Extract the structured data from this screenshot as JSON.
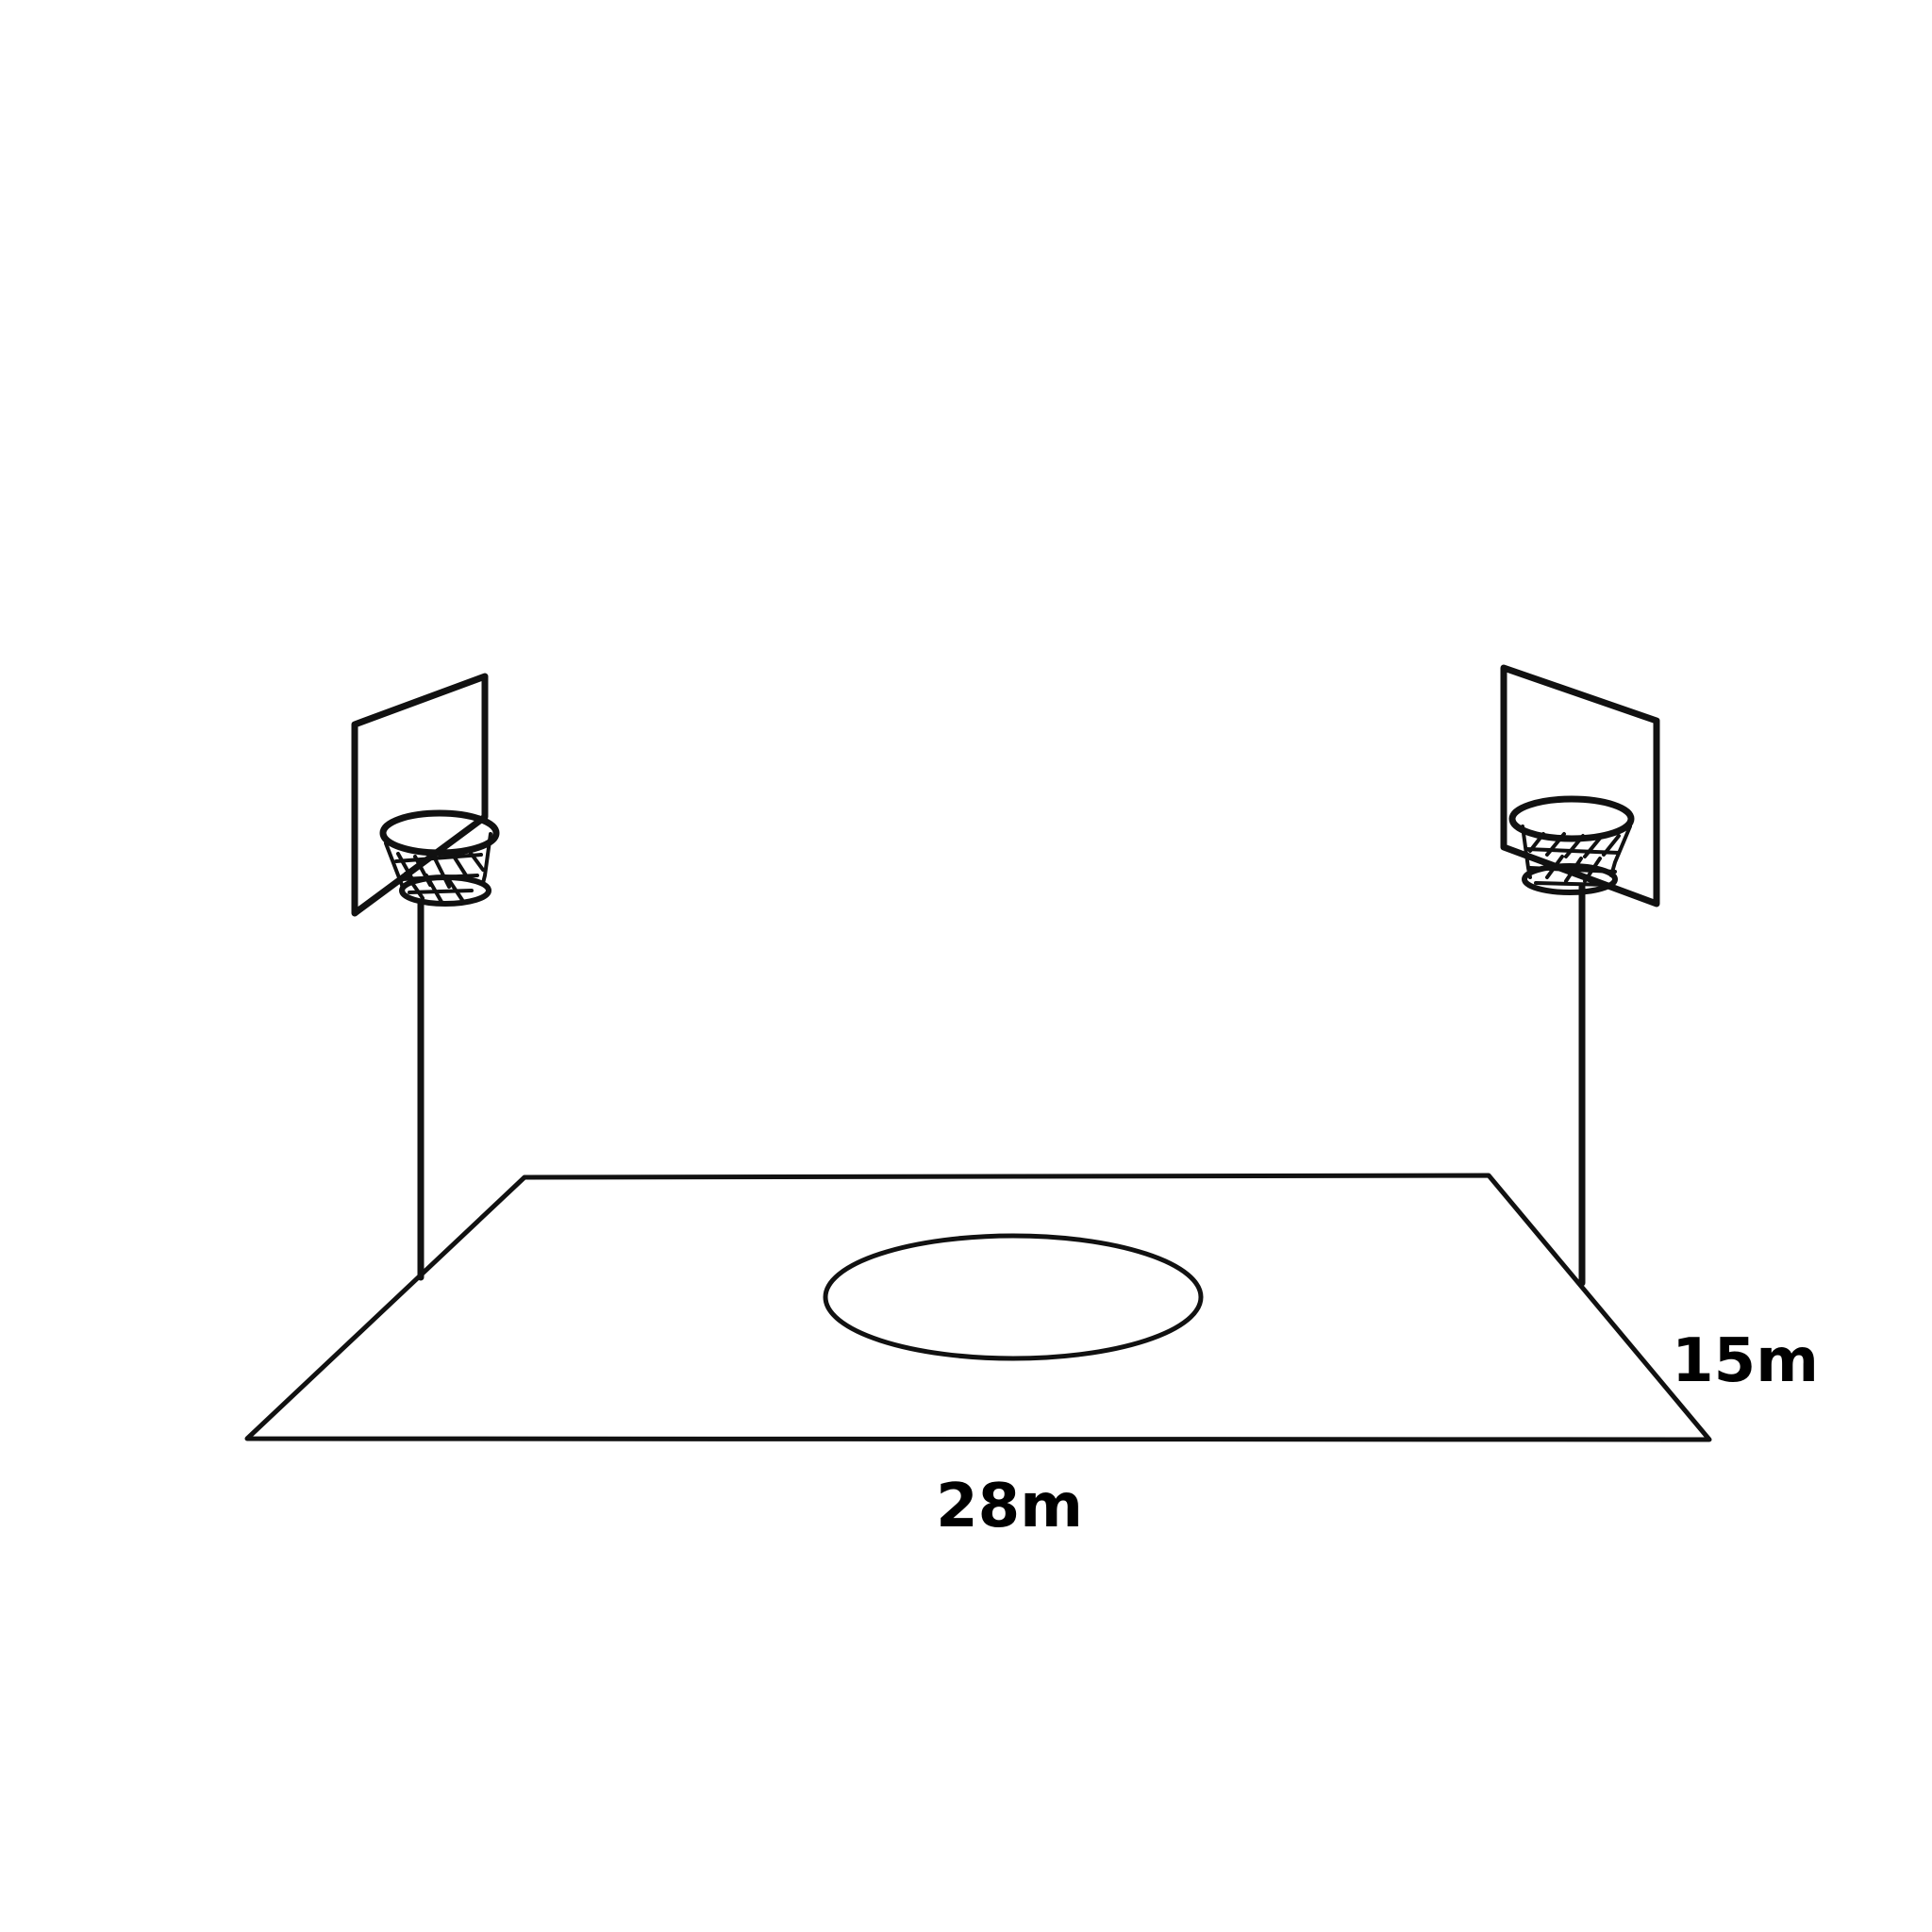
{
  "diagram": {
    "dimensions": {
      "width_label": "28m",
      "depth_label": "15m"
    },
    "colors": {
      "line": "#111111",
      "background": "#ffffff"
    },
    "elements": [
      "basketball-court-floor",
      "center-circle",
      "left-hoop",
      "right-hoop"
    ]
  }
}
